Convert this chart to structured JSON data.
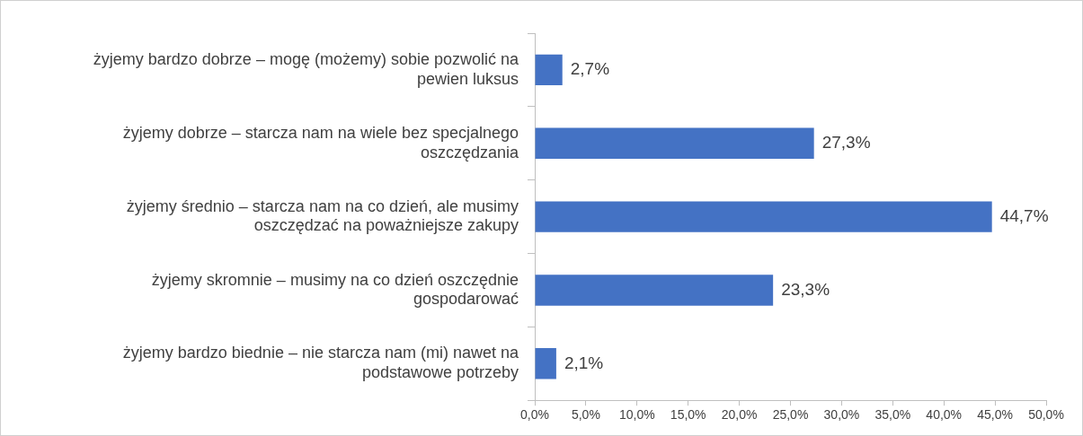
{
  "chart_data": {
    "type": "bar",
    "orientation": "horizontal",
    "categories": [
      "żyjemy bardzo dobrze – mogę (możemy) sobie pozwolić na pewien luksus",
      "żyjemy dobrze – starcza nam na wiele bez specjalnego oszczędzania",
      "żyjemy średnio – starcza nam na co dzień, ale musimy oszczędzać na poważniejsze zakupy",
      "żyjemy skromnie – musimy na co dzień oszczędnie gospodarować",
      "żyjemy bardzo biednie – nie starcza nam (mi) nawet na podstawowe potrzeby"
    ],
    "values": [
      2.7,
      27.3,
      44.7,
      23.3,
      2.1
    ],
    "value_labels": [
      "2,7%",
      "27,3%",
      "44,7%",
      "23,3%",
      "2,1%"
    ],
    "color": "#4472c4",
    "xlim": [
      0,
      50
    ],
    "xticks": [
      {
        "value": 0,
        "label": "0,0%"
      },
      {
        "value": 5,
        "label": "5,0%"
      },
      {
        "value": 10,
        "label": "10,0%"
      },
      {
        "value": 15,
        "label": "15,0%"
      },
      {
        "value": 20,
        "label": "20,0%"
      },
      {
        "value": 25,
        "label": "25,0%"
      },
      {
        "value": 30,
        "label": "30,0%"
      },
      {
        "value": 35,
        "label": "35,0%"
      },
      {
        "value": 40,
        "label": "40,0%"
      },
      {
        "value": 45,
        "label": "45,0%"
      },
      {
        "value": 50,
        "label": "50,0%"
      }
    ],
    "grid": false,
    "legend": false
  }
}
